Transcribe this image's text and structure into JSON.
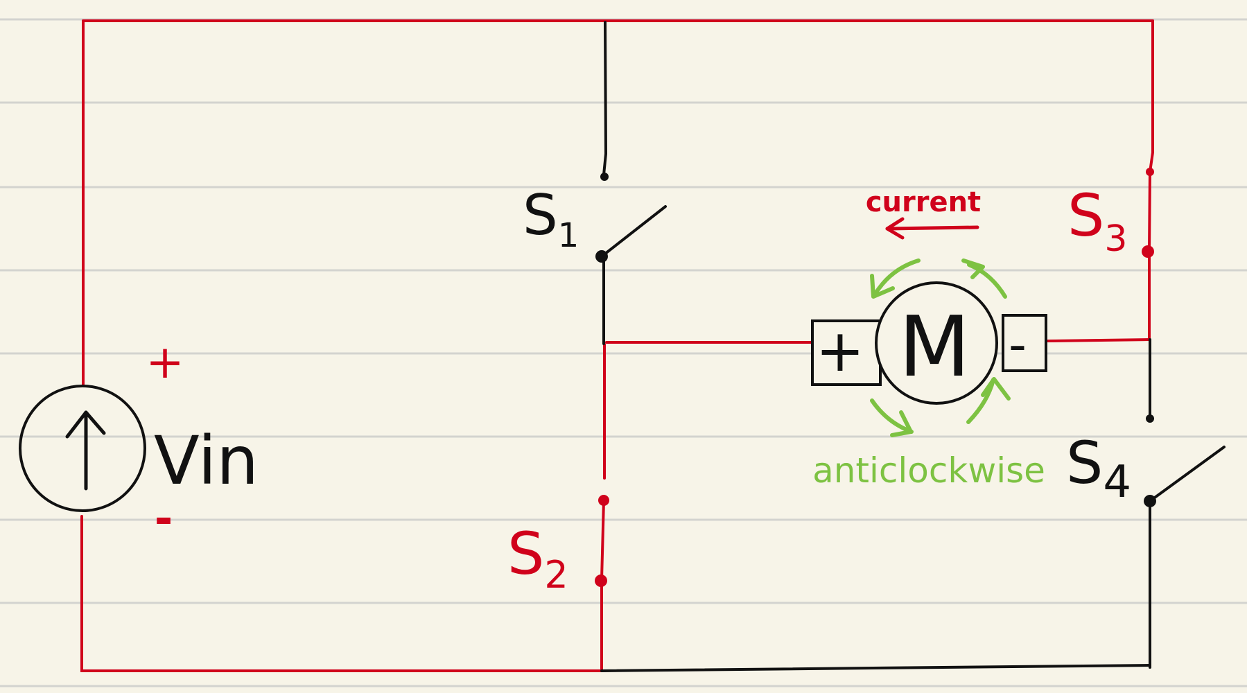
{
  "colors": {
    "paper": "#f7f4e8",
    "rule": "#d3d3cf",
    "active_wire": "#d0021b",
    "inactive_wire": "#111111",
    "rotation": "#7dc242"
  },
  "source": {
    "name": "Vin",
    "plus": "+",
    "minus": "-",
    "icon": "current-source-arrow-up"
  },
  "switches": {
    "s1": {
      "letter": "S",
      "sub": "1"
    },
    "s2": {
      "letter": "S",
      "sub": "2"
    },
    "s3": {
      "letter": "S",
      "sub": "3"
    },
    "s4": {
      "letter": "S",
      "sub": "4"
    }
  },
  "motor": {
    "letter": "M",
    "plus": "+",
    "minus": "-"
  },
  "annotations": {
    "current": "current",
    "rotation": "anticlockwise"
  }
}
